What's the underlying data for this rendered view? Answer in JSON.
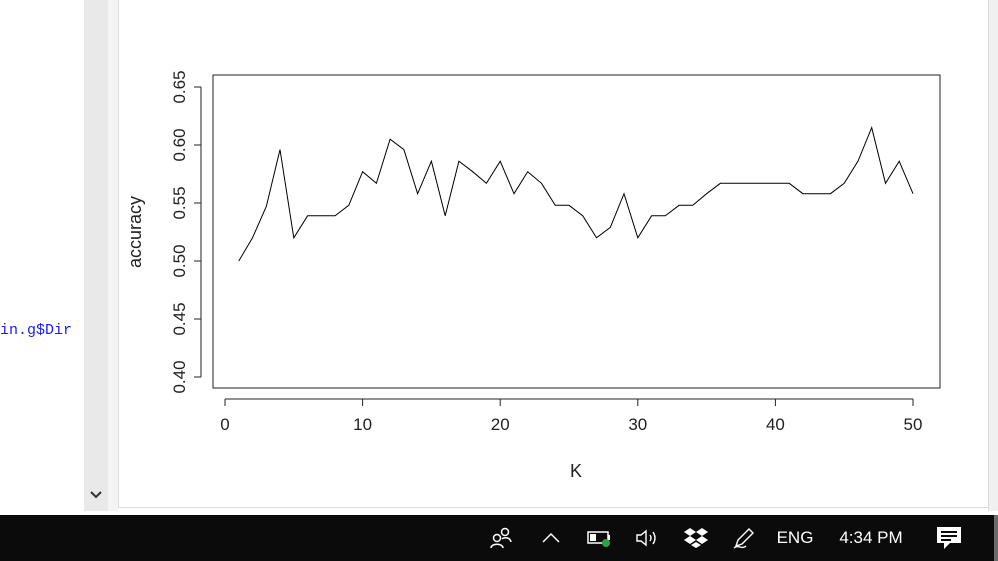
{
  "editor": {
    "code_fragment": "in.g$Dir"
  },
  "chart_data": {
    "type": "line",
    "title": "",
    "xlabel": "K",
    "ylabel": "accuracy",
    "xlim": [
      0,
      50
    ],
    "ylim": [
      0.4,
      0.65
    ],
    "xticks": [
      "0",
      "10",
      "20",
      "30",
      "40",
      "50"
    ],
    "yticks": [
      "0.40",
      "0.45",
      "0.50",
      "0.55",
      "0.60",
      "0.65"
    ],
    "x": [
      1,
      2,
      3,
      4,
      5,
      6,
      7,
      8,
      9,
      10,
      11,
      12,
      13,
      14,
      15,
      16,
      17,
      18,
      19,
      20,
      21,
      22,
      23,
      24,
      25,
      26,
      27,
      28,
      29,
      30,
      31,
      32,
      33,
      34,
      35,
      36,
      37,
      38,
      39,
      40,
      41,
      42,
      43,
      44,
      45,
      46,
      47,
      48,
      49,
      50
    ],
    "series": [
      {
        "values": [
          0.5,
          0.52,
          0.547,
          0.596,
          0.52,
          0.539,
          0.539,
          0.539,
          0.548,
          0.577,
          0.567,
          0.605,
          0.596,
          0.558,
          0.586,
          0.539,
          0.586,
          0.577,
          0.567,
          0.586,
          0.558,
          0.577,
          0.567,
          0.548,
          0.548,
          0.539,
          0.52,
          0.529,
          0.558,
          0.52,
          0.539,
          0.539,
          0.548,
          0.548,
          0.558,
          0.567,
          0.567,
          0.567,
          0.567,
          0.567,
          0.567,
          0.558,
          0.558,
          0.558,
          0.567,
          0.586,
          0.615,
          0.567,
          0.586,
          0.558
        ]
      }
    ],
    "colors": {
      "line": "#000000",
      "axis": "#222222"
    }
  },
  "taskbar": {
    "icons": [
      "people-icon",
      "chevron-up-icon",
      "battery-icon",
      "volume-icon",
      "dropbox-icon",
      "pen-icon",
      "notifications-icon"
    ],
    "language": "ENG",
    "time": "4:34 PM"
  }
}
